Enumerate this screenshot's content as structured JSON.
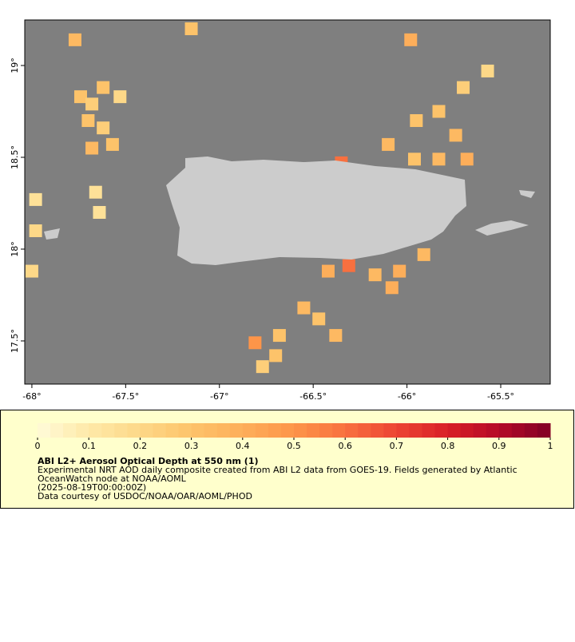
{
  "map": {
    "xlim": [
      -68.038,
      -65.236
    ],
    "ylim": [
      17.265,
      19.248
    ],
    "xticks": [
      {
        "value": -68,
        "label": "-68°"
      },
      {
        "value": -67.5,
        "label": "-67.5°"
      },
      {
        "value": -67,
        "label": "-67°"
      },
      {
        "value": -66.5,
        "label": "-66.5°"
      },
      {
        "value": -66,
        "label": "-66°"
      },
      {
        "value": -65.5,
        "label": "-65.5°"
      }
    ],
    "yticks": [
      {
        "value": 17.5,
        "label": "17.5°"
      },
      {
        "value": 18,
        "label": "18°"
      },
      {
        "value": 18.5,
        "label": "18.5°"
      },
      {
        "value": 19,
        "label": "19°"
      }
    ],
    "cells": [
      {
        "lon": -67.74,
        "lat": 18.83,
        "aod": 0.3
      },
      {
        "lon": -67.68,
        "lat": 18.79,
        "aod": 0.25
      },
      {
        "lon": -67.62,
        "lat": 18.88,
        "aod": 0.3
      },
      {
        "lon": -67.53,
        "lat": 18.83,
        "aod": 0.2
      },
      {
        "lon": -67.7,
        "lat": 18.7,
        "aod": 0.3
      },
      {
        "lon": -67.62,
        "lat": 18.66,
        "aod": 0.25
      },
      {
        "lon": -67.68,
        "lat": 18.55,
        "aod": 0.35
      },
      {
        "lon": -67.57,
        "lat": 18.57,
        "aod": 0.3
      },
      {
        "lon": -67.77,
        "lat": 19.14,
        "aod": 0.35
      },
      {
        "lon": -67.15,
        "lat": 19.2,
        "aod": 0.3
      },
      {
        "lon": -67.98,
        "lat": 18.27,
        "aod": 0.15
      },
      {
        "lon": -67.98,
        "lat": 18.1,
        "aod": 0.2
      },
      {
        "lon": -68.0,
        "lat": 17.88,
        "aod": 0.2
      },
      {
        "lon": -67.66,
        "lat": 18.31,
        "aod": 0.15
      },
      {
        "lon": -67.64,
        "lat": 18.2,
        "aod": 0.15
      },
      {
        "lon": -66.1,
        "lat": 18.57,
        "aod": 0.35
      },
      {
        "lon": -65.95,
        "lat": 18.7,
        "aod": 0.3
      },
      {
        "lon": -65.83,
        "lat": 18.75,
        "aod": 0.3
      },
      {
        "lon": -65.74,
        "lat": 18.62,
        "aod": 0.35
      },
      {
        "lon": -65.68,
        "lat": 18.49,
        "aod": 0.4
      },
      {
        "lon": -65.83,
        "lat": 18.49,
        "aod": 0.35
      },
      {
        "lon": -65.96,
        "lat": 18.49,
        "aod": 0.3
      },
      {
        "lon": -65.7,
        "lat": 18.88,
        "aod": 0.25
      },
      {
        "lon": -65.57,
        "lat": 18.97,
        "aod": 0.2
      },
      {
        "lon": -65.98,
        "lat": 19.14,
        "aod": 0.4
      },
      {
        "lon": -66.42,
        "lat": 17.88,
        "aod": 0.4
      },
      {
        "lon": -66.17,
        "lat": 17.86,
        "aod": 0.35
      },
      {
        "lon": -66.04,
        "lat": 17.88,
        "aod": 0.4
      },
      {
        "lon": -65.91,
        "lat": 17.97,
        "aod": 0.35
      },
      {
        "lon": -66.08,
        "lat": 17.79,
        "aod": 0.4
      },
      {
        "lon": -66.55,
        "lat": 17.68,
        "aod": 0.35
      },
      {
        "lon": -66.47,
        "lat": 17.62,
        "aod": 0.3
      },
      {
        "lon": -66.38,
        "lat": 17.53,
        "aod": 0.35
      },
      {
        "lon": -66.68,
        "lat": 17.53,
        "aod": 0.3
      },
      {
        "lon": -66.77,
        "lat": 17.36,
        "aod": 0.25
      },
      {
        "lon": -66.7,
        "lat": 17.42,
        "aod": 0.3
      },
      {
        "lon": -66.81,
        "lat": 17.49,
        "aod": 0.5
      },
      {
        "lon": -66.35,
        "lat": 18.47,
        "aod": 0.6
      },
      {
        "lon": -66.31,
        "lat": 17.91,
        "aod": 0.6
      }
    ]
  },
  "colorbar": {
    "range": [
      0,
      1
    ],
    "ticks": [
      0,
      0.1,
      0.2,
      0.3,
      0.4,
      0.5,
      0.6,
      0.7,
      0.8,
      0.9,
      1
    ],
    "colormap": [
      "#fffbd9",
      "#fee9a8",
      "#fdd888",
      "#fdc36a",
      "#fdae5a",
      "#fd9549",
      "#f8703f",
      "#ec4534",
      "#d81f27",
      "#b50a28",
      "#800026"
    ]
  },
  "caption": {
    "title": "ABI L2+ Aerosol Optical Depth at 550 nm (1)",
    "lines": [
      "Experimental NRT AOD daily composite created from ABI L2 data from GOES-19. Fields generated by Atlantic",
      "OceanWatch node at NOAA/AOML",
      "(2025-08-19T00:00:00Z)",
      "Data courtesy of USDOC/NOAA/OAR/AOML/PHOD"
    ]
  }
}
